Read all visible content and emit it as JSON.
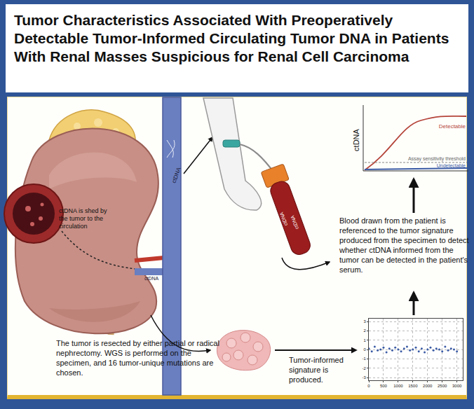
{
  "header": {
    "title": "Tumor Characteristics Associated With Preoperatively Detectable Tumor-Informed Circulating Tumor DNA in Patients With Renal Masses Suspicious for Renal Cell Carcinoma"
  },
  "diagram": {
    "tumor_label": "ctDNA is shed by the tumor to the circulation",
    "vessel_labels": [
      "ctDNA",
      "ctDNA"
    ],
    "tube_labels": [
      "ctDNA",
      "ctDNA"
    ],
    "resection_text": "The tumor is resected by either partial or radical nephrectomy. WGS is performed on the specimen, and 16 tumor-unique mutations are chosen.",
    "signature_text": "Tumor-informed signature is produced.",
    "blood_text": "Blood drawn from the patient is referenced to the tumor signature produced from the specimen to detect whether ctDNA informed from the tumor can be detected in the patient's serum.",
    "detection_plot": {
      "y_label": "ctDNA",
      "threshold_label": "Assay sensitivity threshold",
      "series": [
        {
          "name": "Detectable",
          "color": "#b5453a"
        },
        {
          "name": "Undetectable",
          "color": "#3b5ba5"
        }
      ]
    }
  },
  "chart_data": {
    "type": "scatter",
    "color": "#3b5ba5",
    "marker": "circle",
    "grid": true,
    "x": [
      0,
      100,
      200,
      300,
      400,
      500,
      600,
      700,
      800,
      900,
      1000,
      1100,
      1200,
      1300,
      1400,
      1500,
      1600,
      1700,
      1800,
      1900,
      2000,
      2100,
      2200,
      2300,
      2400,
      2500,
      2600,
      2700,
      2800,
      2900,
      3000
    ],
    "values": [
      0.1,
      -0.2,
      0.3,
      -0.1,
      0.0,
      0.2,
      -0.3,
      0.1,
      -0.1,
      0.2,
      0.0,
      -0.2,
      0.1,
      0.3,
      -0.1,
      0.0,
      0.2,
      -0.2,
      0.1,
      -0.3,
      0.0,
      0.2,
      -0.1,
      0.1,
      0.0,
      -0.2,
      0.3,
      -0.1,
      0.1,
      0.0,
      -0.2
    ],
    "xlim": [
      0,
      3200
    ],
    "ylim": [
      -3.3,
      3.3
    ],
    "xticks": [
      0,
      500,
      1000,
      1500,
      2000,
      2500,
      3000
    ],
    "yticks": [
      -3,
      -2,
      -1,
      0,
      1,
      2,
      3
    ]
  }
}
